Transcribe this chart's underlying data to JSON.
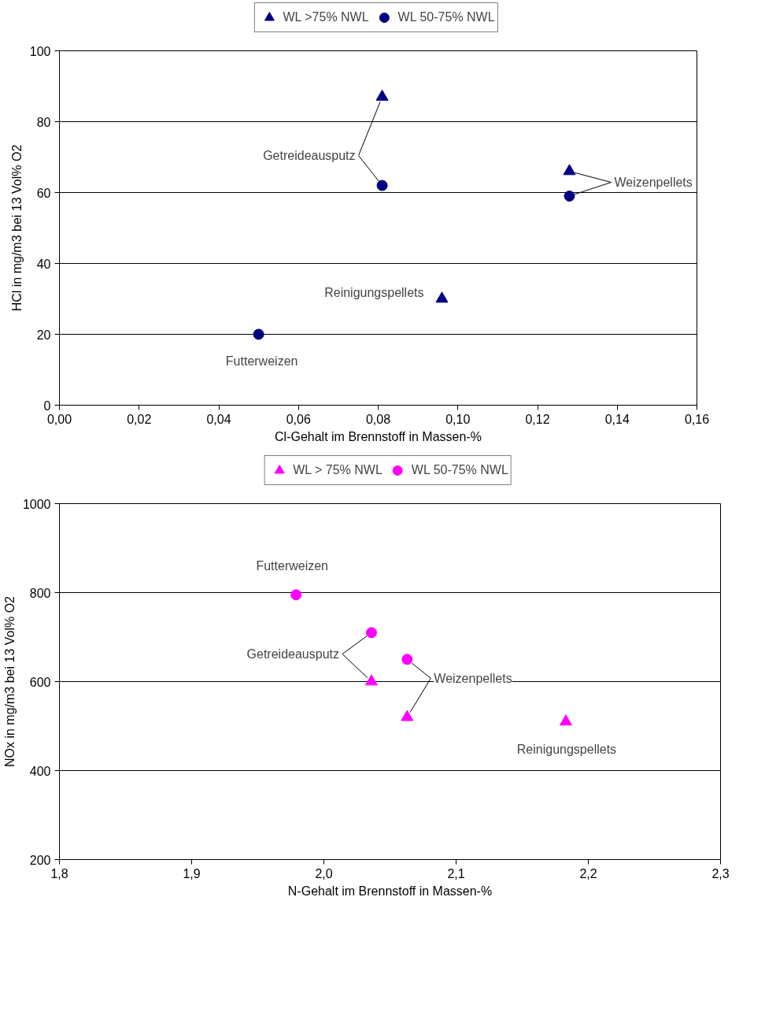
{
  "chart_data": [
    {
      "type": "scatter",
      "xlabel": "Cl-Gehalt im Brennstoff in Massen-%",
      "ylabel": "HCl in mg/m3 bei 13 Vol% O2",
      "xlim": [
        0,
        0.16
      ],
      "ylim": [
        0,
        100
      ],
      "xticks": [
        {
          "value": 0,
          "label": "0,00"
        },
        {
          "value": 0.02,
          "label": "0,02"
        },
        {
          "value": 0.04,
          "label": "0,04"
        },
        {
          "value": 0.06,
          "label": "0,06"
        },
        {
          "value": 0.08,
          "label": "0,08"
        },
        {
          "value": 0.1,
          "label": "0,10"
        },
        {
          "value": 0.12,
          "label": "0,12"
        },
        {
          "value": 0.14,
          "label": "0,14"
        },
        {
          "value": 0.16,
          "label": "0,16"
        }
      ],
      "yticks": [
        0,
        20,
        40,
        60,
        80,
        100
      ],
      "grid": "y",
      "legend": "top",
      "series": [
        {
          "name": "WL >75% NWL",
          "color": "#000080",
          "marker": "triangle",
          "x": [
            0.081,
            0.096,
            0.128
          ],
          "values": [
            87,
            30,
            66
          ]
        },
        {
          "name": "WL 50-75% NWL",
          "color": "#000080",
          "marker": "circle",
          "x": [
            0.081,
            0.128,
            0.05
          ],
          "values": [
            62,
            59,
            20
          ]
        }
      ],
      "annotations": [
        {
          "text": "Getreideausputz",
          "x": 0.081,
          "y": 62
        },
        {
          "text": "Weizenpellets",
          "x": 0.128,
          "y": 66
        },
        {
          "text": "Reinigungspellets",
          "x": 0.096,
          "y": 30
        },
        {
          "text": "Futterweizen",
          "x": 0.05,
          "y": 20
        }
      ]
    },
    {
      "type": "scatter",
      "xlabel": "N-Gehalt im Brennstoff in Massen-%",
      "ylabel": "NOx in mg/m3 bei 13 Vol% O2",
      "xlim": [
        1.8,
        2.3
      ],
      "ylim": [
        200,
        1000
      ],
      "xticks": [
        {
          "value": 1.8,
          "label": "1,8"
        },
        {
          "value": 1.9,
          "label": "1,9"
        },
        {
          "value": 2.0,
          "label": "2,0"
        },
        {
          "value": 2.1,
          "label": "2,1"
        },
        {
          "value": 2.2,
          "label": "2,2"
        },
        {
          "value": 2.3,
          "label": "2,3"
        }
      ],
      "yticks": [
        200,
        400,
        600,
        800,
        1000
      ],
      "grid": "y",
      "legend": "top",
      "series": [
        {
          "name": "WL > 75% NWL",
          "color": "#ff00ff",
          "marker": "triangle",
          "x": [
            2.036,
            2.063,
            2.183
          ],
          "values": [
            600,
            520,
            510
          ]
        },
        {
          "name": "WL 50-75% NWL",
          "color": "#ff00ff",
          "marker": "circle",
          "x": [
            1.979,
            2.036,
            2.063
          ],
          "values": [
            795,
            710,
            650
          ]
        }
      ],
      "annotations": [
        {
          "text": "Futterweizen",
          "x": 1.979,
          "y": 795
        },
        {
          "text": "Getreideausputz",
          "x": 2.036,
          "y": 600
        },
        {
          "text": "Weizenpellets",
          "x": 2.063,
          "y": 650
        },
        {
          "text": "Reinigungspellets",
          "x": 2.183,
          "y": 510
        }
      ]
    }
  ]
}
